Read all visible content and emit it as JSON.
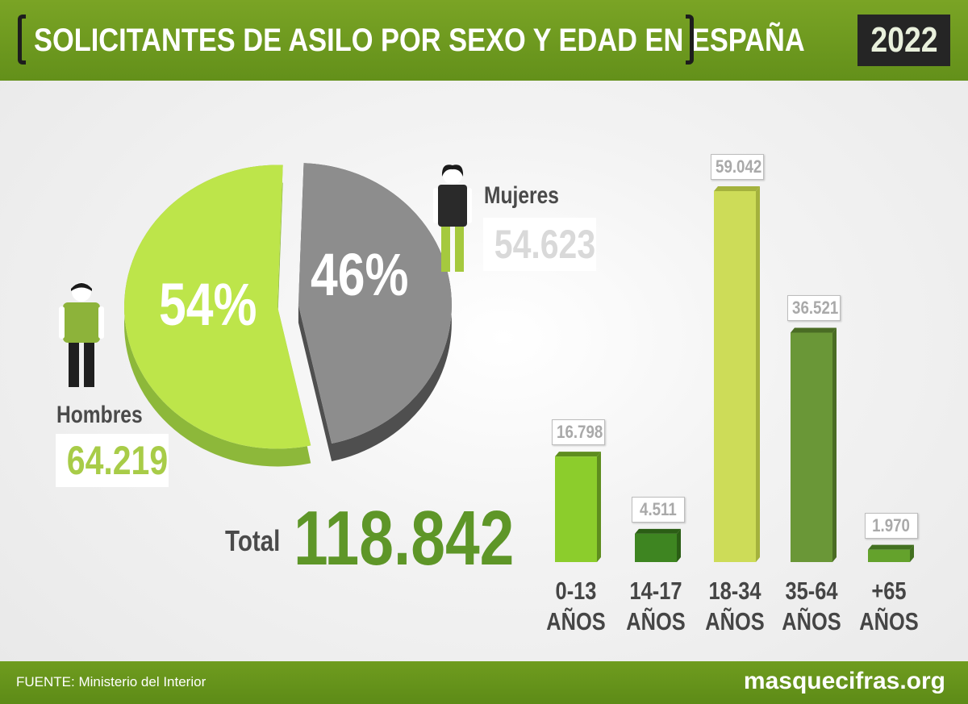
{
  "header": {
    "title": "SOLICITANTES DE ASILO POR SEXO Y EDAD EN ESPAÑA",
    "year": "2022",
    "bg_color": "#6e9a1e"
  },
  "footer": {
    "source": "FUENTE: Ministerio del Interior",
    "site": "masquecifras.org"
  },
  "summary": {
    "total_label": "Total",
    "total_value": "118.842"
  },
  "chart_data": [
    {
      "type": "pie",
      "slices": [
        {
          "name": "Hombres",
          "value": 64219,
          "value_label": "64.219",
          "percent_label": "54%",
          "color": "#bde54a",
          "side_color": "#8db83a"
        },
        {
          "name": "Mujeres",
          "value": 54623,
          "value_label": "54.623",
          "percent_label": "46%",
          "color": "#8d8d8d",
          "side_color": "#4f4f4f"
        }
      ],
      "icons": [
        "male-figure-icon",
        "female-figure-icon"
      ]
    },
    {
      "type": "bar",
      "categories": [
        {
          "line1": "0-13",
          "line2": "AÑOS"
        },
        {
          "line1": "14-17",
          "line2": "AÑOS"
        },
        {
          "line1": "18-34",
          "line2": "AÑOS"
        },
        {
          "line1": "35-64",
          "line2": "AÑOS"
        },
        {
          "line1": "+65",
          "line2": "AÑOS"
        }
      ],
      "values": [
        16798,
        4511,
        59042,
        36521,
        1970
      ],
      "value_labels": [
        "16.798",
        "4.511",
        "59.042",
        "36.521",
        "1.970"
      ],
      "colors": [
        "#8ccd2c",
        "#3e8521",
        "#cddc58",
        "#6a9737",
        "#64a22c"
      ],
      "side_colors": [
        "#5e8d1e",
        "#2b5e15",
        "#a4b23d",
        "#4a6c24",
        "#427020"
      ],
      "grid": false
    }
  ]
}
